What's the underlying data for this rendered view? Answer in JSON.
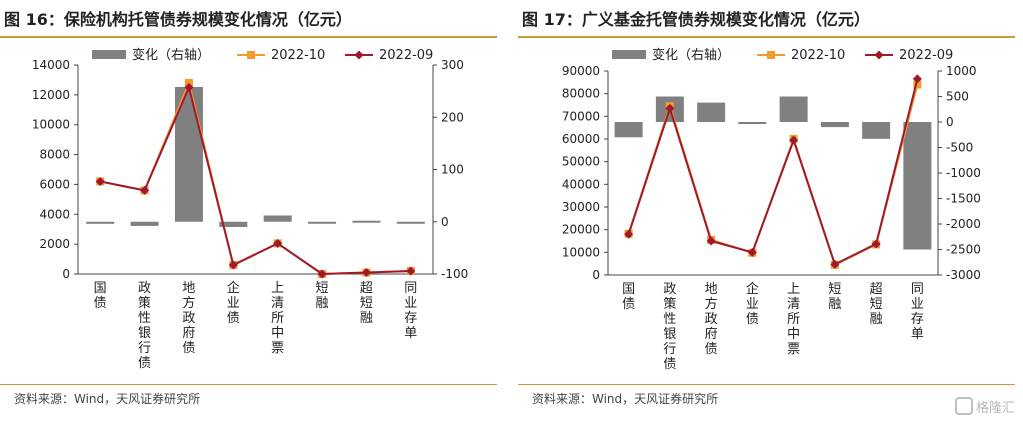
{
  "charts": [
    {
      "title": "图 16：保险机构托管债券规模变化情况（亿元）",
      "source": "资料来源：Wind，天风证券研究所"
    },
    {
      "title": "图 17：广义基金托管债券规模变化情况（亿元）",
      "source": "资料来源：Wind，天风证券研究所"
    }
  ],
  "watermark": "格隆汇",
  "colors": {
    "bar": "#808080",
    "line_oct": "#f29a2e",
    "line_sep": "#a0192a",
    "rule": "#c79a3a"
  },
  "chart_data": [
    {
      "type": "bar+line",
      "categories": [
        "国债",
        "政策性银行债",
        "地方政府债",
        "企业债",
        "上清所中票",
        "短融",
        "超短融",
        "同业存单"
      ],
      "ylim_left": [
        0,
        14000
      ],
      "yticks_left": [
        0,
        2000,
        4000,
        6000,
        8000,
        10000,
        12000,
        14000
      ],
      "ylim_right": [
        -100,
        300
      ],
      "yticks_right": [
        -100,
        0,
        100,
        200,
        300
      ],
      "legend": [
        "变化（右轴）",
        "2022-10",
        "2022-09"
      ],
      "series": [
        {
          "name": "变化（右轴）",
          "kind": "bar",
          "axis": "right",
          "values": [
            -4,
            -8,
            258,
            -10,
            12,
            -1,
            2,
            -1
          ]
        },
        {
          "name": "2022-10",
          "kind": "line",
          "axis": "left",
          "values": [
            6200,
            5600,
            12800,
            600,
            2050,
            0,
            100,
            200
          ]
        },
        {
          "name": "2022-09",
          "kind": "line",
          "axis": "left",
          "values": [
            6200,
            5600,
            12500,
            600,
            2050,
            0,
            100,
            200
          ]
        }
      ]
    },
    {
      "type": "bar+line",
      "categories": [
        "国债",
        "政策性银行债",
        "地方政府债",
        "企业债",
        "上清所中票",
        "短融",
        "超短融",
        "同业存单"
      ],
      "ylim_left": [
        0,
        90000
      ],
      "yticks_left": [
        0,
        10000,
        20000,
        30000,
        40000,
        50000,
        60000,
        70000,
        80000,
        90000
      ],
      "ylim_right": [
        -3000,
        1000
      ],
      "yticks_right": [
        -3000,
        -2500,
        -2000,
        -1500,
        -1000,
        -500,
        0,
        500,
        1000
      ],
      "legend": [
        "变化（右轴）",
        "2022-10",
        "2022-09"
      ],
      "series": [
        {
          "name": "变化（右轴）",
          "kind": "bar",
          "axis": "right",
          "values": [
            -300,
            500,
            380,
            -30,
            500,
            -100,
            -330,
            -2500
          ]
        },
        {
          "name": "2022-10",
          "kind": "line",
          "axis": "left",
          "values": [
            18200,
            74500,
            15500,
            9800,
            60000,
            4500,
            13500,
            84000
          ]
        },
        {
          "name": "2022-09",
          "kind": "line",
          "axis": "left",
          "values": [
            18000,
            73500,
            15000,
            10000,
            59500,
            4700,
            13700,
            86500
          ]
        }
      ]
    }
  ]
}
